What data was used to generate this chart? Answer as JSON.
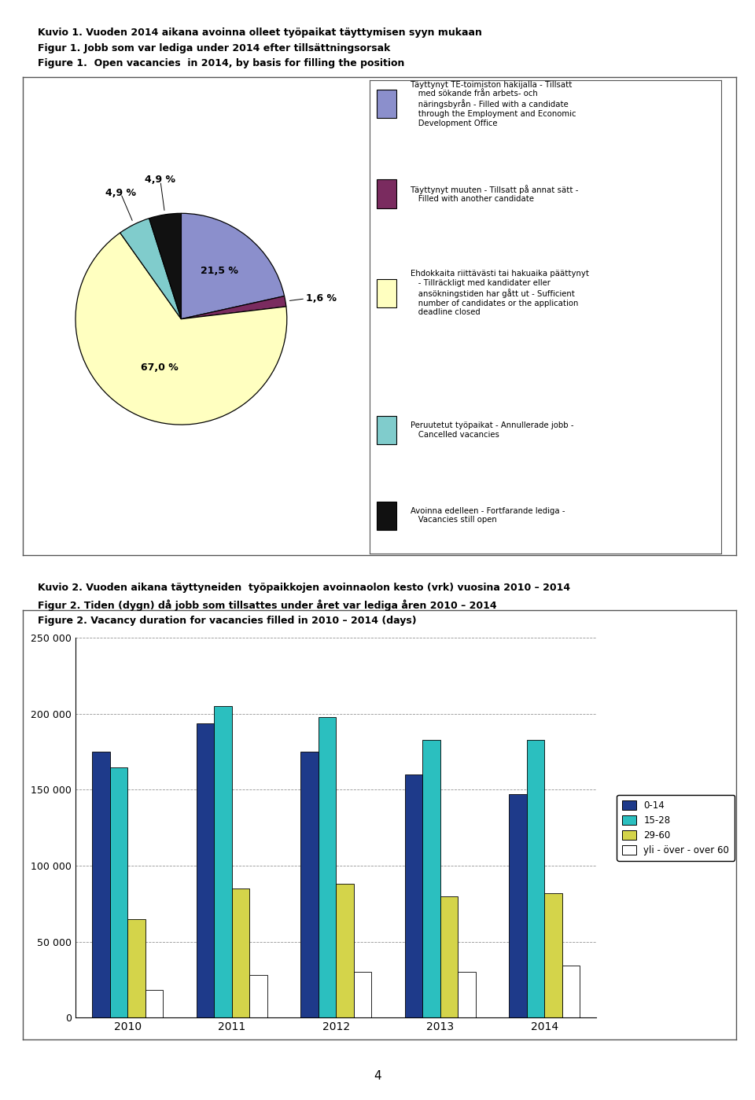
{
  "fig1_title1": "Kuvio 1. Vuoden 2014 aikana avoinna olleet työpaikat täyttymisen syyn mukaan",
  "fig1_title2": "Figur 1. Jobb som var lediga under 2014 efter tillsättningsorsak",
  "fig1_title3": "Figure 1.  Open vacancies  in 2014, by basis for filling the position",
  "pie_values": [
    21.5,
    1.6,
    67.0,
    4.9,
    4.9
  ],
  "pie_colors": [
    "#8B8FCC",
    "#7A2B5F",
    "#FFFFC0",
    "#80CCCC",
    "#111111"
  ],
  "pie_startangle": 90,
  "pie_counterclock": false,
  "legend1_entries": [
    {
      "color": "#8B8FCC",
      "edgecolor": "#000000",
      "text": "Täyttynyt TE-toimiston hakijalla - Tillsatt\n   med sökande från arbets- och\n   näringsbyrån - Filled with a candidate\n   through the Employment and Economic\n   Development Office"
    },
    {
      "color": "#7A2B5F",
      "edgecolor": "#000000",
      "text": "Täyttynyt muuten - Tillsatt på annat sätt -\n   Filled with another candidate"
    },
    {
      "color": "#FFFFC0",
      "edgecolor": "#000000",
      "text": "Ehdokkaita riittävästi tai hakuaika päättynyt\n   - Tillräckligt med kandidater eller\n   ansökningstiden har gått ut - Sufficient\n   number of candidates or the application\n   deadline closed"
    },
    {
      "color": "#80CCCC",
      "edgecolor": "#000000",
      "text": "Peruutetut työpaikat - Annullerade jobb -\n   Cancelled vacancies"
    },
    {
      "color": "#111111",
      "edgecolor": "#000000",
      "text": "Avoinna edelleen - Fortfarande lediga -\n   Vacancies still open"
    }
  ],
  "fig2_title1": "Kuvio 2. Vuoden aikana täyttyneiden  työpaikkojen avoinnaolon kesto (vrk) vuosina 2010 – 2014",
  "fig2_title2": "Figur 2. Tiden (dygn) då jobb som tillsattes under året var lediga åren 2010 – 2014",
  "fig2_title3": "Figure 2. Vacancy duration for vacancies filled in 2010 – 2014 (days)",
  "bar_years": [
    "2010",
    "2011",
    "2012",
    "2013",
    "2014"
  ],
  "bar_series": {
    "0-14": [
      175000,
      194000,
      175000,
      160000,
      147000
    ],
    "15-28": [
      165000,
      205000,
      198000,
      183000,
      183000
    ],
    "29-60": [
      65000,
      85000,
      88000,
      80000,
      82000
    ],
    "yli - över - over 60": [
      18000,
      28000,
      30000,
      30000,
      34000
    ]
  },
  "bar_series_order": [
    "0-14",
    "15-28",
    "29-60",
    "yli - över - over 60"
  ],
  "bar_colors": [
    "#1E3A8A",
    "#2BBFBF",
    "#D4D44A",
    "#FFFFFF"
  ],
  "bar_ylim": [
    0,
    250000
  ],
  "bar_yticks": [
    0,
    50000,
    100000,
    150000,
    200000,
    250000
  ],
  "page_number": "4"
}
